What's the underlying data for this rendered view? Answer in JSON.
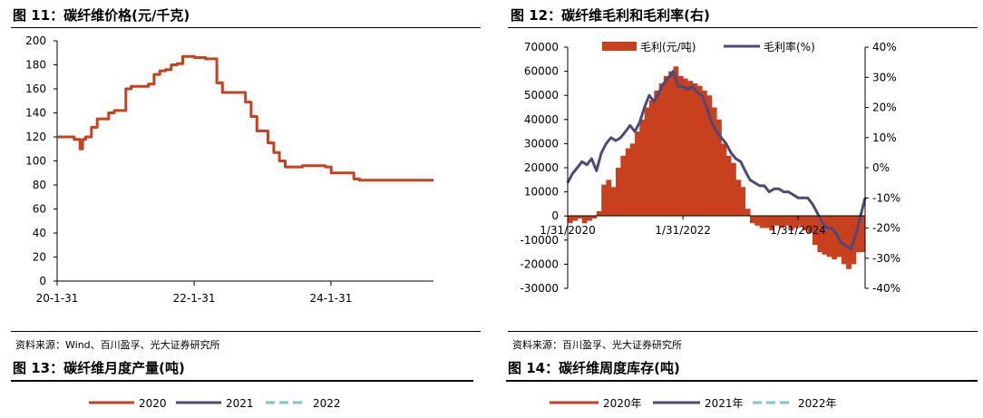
{
  "fig11": {
    "title": "图 11：碳纤维价格(元/千克)"
  },
  "fig12": {
    "title": "图 12：碳纤维毛利和毛利率(右)"
  },
  "fig13": {
    "title": "图 13：碳纤维月度产量(吨)"
  },
  "fig14": {
    "title": "图 14：碳纤维周度库存(吨)"
  },
  "source_left": "资料来源：Wind、百川盈孚、光大证券研究所",
  "source_right": "资料来源：百川盈孚、光大证券研究所",
  "colors": {
    "series_red": "#c8401e",
    "series_navy": "#4c4a78",
    "series_teal": "#7fc6c8",
    "series_blue": "#6aa3c8"
  },
  "chart_data": [
    {
      "id": "fig11",
      "type": "line",
      "title": "碳纤维价格(元/千克)",
      "ylim": [
        0,
        200
      ],
      "yticks": [
        0,
        20,
        40,
        60,
        80,
        100,
        120,
        140,
        160,
        180,
        200
      ],
      "xtick_labels": [
        "20-1-31",
        "22-1-31",
        "24-1-31"
      ],
      "xtick_dates": [
        "2020-01-31",
        "2022-01-31",
        "2024-01-31"
      ],
      "xlim": [
        "2020-01-31",
        "2025-07-31"
      ],
      "grid": false,
      "series": [
        {
          "color": "#c8401e",
          "x": [
            "2020-01-31",
            "2020-05-01",
            "2020-06-01",
            "2020-06-15",
            "2020-07-01",
            "2020-08-01",
            "2020-09-01",
            "2020-11-01",
            "2020-12-01",
            "2021-02-01",
            "2021-03-01",
            "2021-06-01",
            "2021-07-01",
            "2021-08-01",
            "2021-09-01",
            "2021-10-01",
            "2021-11-01",
            "2021-12-01",
            "2022-01-01",
            "2022-02-01",
            "2022-04-01",
            "2022-06-01",
            "2022-07-01",
            "2022-09-01",
            "2022-11-01",
            "2022-12-01",
            "2023-01-01",
            "2023-03-01",
            "2023-04-01",
            "2023-05-01",
            "2023-06-01",
            "2023-08-01",
            "2023-09-01",
            "2023-11-01",
            "2024-01-01",
            "2024-02-01",
            "2024-04-01",
            "2024-06-01",
            "2024-07-01",
            "2024-10-01",
            "2025-01-01",
            "2025-04-01",
            "2025-07-31"
          ],
          "y": [
            120,
            118,
            110,
            118,
            120,
            128,
            135,
            140,
            142,
            160,
            162,
            164,
            172,
            175,
            176,
            180,
            181,
            187,
            187,
            186,
            185,
            165,
            157,
            157,
            149,
            137,
            125,
            115,
            107,
            100,
            95,
            95,
            96,
            96,
            95,
            90,
            90,
            85,
            84,
            84,
            84,
            84,
            84
          ]
        }
      ]
    },
    {
      "id": "fig12",
      "type": "area",
      "title": "碳纤维毛利和毛利率(右)",
      "ylim": [
        -30000,
        70000
      ],
      "yticks": [
        -30000,
        -20000,
        -10000,
        0,
        10000,
        20000,
        30000,
        40000,
        50000,
        60000,
        70000
      ],
      "y2lim": [
        -40,
        40
      ],
      "y2ticks": [
        "-40%",
        "-30%",
        "-20%",
        "-10%",
        "0%",
        "10%",
        "20%",
        "30%",
        "40%"
      ],
      "y2tick_values": [
        -40,
        -30,
        -20,
        -10,
        0,
        10,
        20,
        30,
        40
      ],
      "xtick_labels": [
        "1/31/2020",
        "1/31/2022",
        "1/31/2024"
      ],
      "xtick_dates": [
        "2020-01-31",
        "2022-01-31",
        "2024-01-31"
      ],
      "xlim": [
        "2020-01-31",
        "2025-03-31"
      ],
      "legend_position": "top",
      "series": [
        {
          "name": "毛利(元/吨)",
          "color": "#c8401e",
          "axis": "left",
          "kind": "area",
          "x": [
            "2020-01-31",
            "2020-03-01",
            "2020-04-01",
            "2020-05-01",
            "2020-06-01",
            "2020-07-01",
            "2020-08-01",
            "2020-09-01",
            "2020-10-01",
            "2020-11-01",
            "2020-12-01",
            "2021-01-01",
            "2021-02-01",
            "2021-03-01",
            "2021-04-01",
            "2021-05-01",
            "2021-06-01",
            "2021-07-01",
            "2021-08-01",
            "2021-09-01",
            "2021-10-01",
            "2021-11-01",
            "2021-12-01",
            "2022-01-01",
            "2022-02-01",
            "2022-03-01",
            "2022-04-01",
            "2022-05-01",
            "2022-06-01",
            "2022-07-01",
            "2022-08-01",
            "2022-09-01",
            "2022-10-01",
            "2022-11-01",
            "2022-12-01",
            "2023-01-01",
            "2023-02-01",
            "2023-03-01",
            "2023-04-01",
            "2023-05-01",
            "2023-06-01",
            "2023-07-01",
            "2023-08-01",
            "2023-09-01",
            "2023-10-01",
            "2023-11-01",
            "2023-12-01",
            "2024-01-01",
            "2024-02-01",
            "2024-03-01",
            "2024-04-01",
            "2024-05-01",
            "2024-06-01",
            "2024-07-01",
            "2024-08-01",
            "2024-09-01",
            "2024-10-01",
            "2024-11-01",
            "2024-12-01",
            "2025-01-01",
            "2025-02-01",
            "2025-03-31"
          ],
          "y": [
            -3000,
            -2000,
            -1000,
            -3000,
            -2000,
            -1000,
            2000,
            13000,
            15000,
            12000,
            20000,
            25000,
            28000,
            30000,
            35000,
            40000,
            45000,
            48000,
            52000,
            55000,
            58000,
            60000,
            62000,
            58000,
            57000,
            56000,
            55000,
            54000,
            52000,
            50000,
            45000,
            40000,
            30000,
            25000,
            22000,
            15000,
            12000,
            3000,
            -3000,
            -4000,
            -5000,
            -5000,
            -6000,
            -4000,
            -5000,
            -4000,
            -6000,
            -5000,
            -4000,
            -6000,
            -7000,
            -12000,
            -15000,
            -16000,
            -17000,
            -18000,
            -17000,
            -20000,
            -22000,
            -20000,
            -15000,
            -8000
          ]
        },
        {
          "name": "毛利率(%)",
          "color": "#4c4a78",
          "axis": "right",
          "kind": "line",
          "x": [
            "2020-01-31",
            "2020-03-01",
            "2020-04-01",
            "2020-05-01",
            "2020-06-01",
            "2020-07-01",
            "2020-08-01",
            "2020-09-01",
            "2020-10-01",
            "2020-11-01",
            "2020-12-01",
            "2021-01-01",
            "2021-02-01",
            "2021-03-01",
            "2021-04-01",
            "2021-05-01",
            "2021-06-01",
            "2021-07-01",
            "2021-08-01",
            "2021-09-01",
            "2021-10-01",
            "2021-11-01",
            "2021-12-01",
            "2022-01-01",
            "2022-02-01",
            "2022-03-01",
            "2022-04-01",
            "2022-05-01",
            "2022-06-01",
            "2022-07-01",
            "2022-08-01",
            "2022-09-01",
            "2022-10-01",
            "2022-11-01",
            "2022-12-01",
            "2023-01-01",
            "2023-02-01",
            "2023-03-01",
            "2023-04-01",
            "2023-05-01",
            "2023-06-01",
            "2023-07-01",
            "2023-08-01",
            "2023-09-01",
            "2023-10-01",
            "2023-11-01",
            "2023-12-01",
            "2024-01-01",
            "2024-02-01",
            "2024-03-01",
            "2024-04-01",
            "2024-05-01",
            "2024-06-01",
            "2024-07-01",
            "2024-08-01",
            "2024-09-01",
            "2024-10-01",
            "2024-11-01",
            "2024-12-01",
            "2025-01-01",
            "2025-02-01",
            "2025-03-31"
          ],
          "y": [
            -5,
            -2,
            0,
            2,
            1,
            3,
            -1,
            5,
            8,
            10,
            9,
            10,
            12,
            14,
            12,
            15,
            20,
            24,
            22,
            25,
            28,
            30,
            32,
            27,
            27,
            26,
            27,
            25,
            24,
            20,
            15,
            12,
            10,
            8,
            5,
            3,
            2,
            -1,
            -4,
            -5,
            -6,
            -6,
            -8,
            -7,
            -7,
            -8,
            -8,
            -9,
            -10,
            -10,
            -10,
            -12,
            -15,
            -18,
            -20,
            -20,
            -22,
            -25,
            -26,
            -27,
            -22,
            -10
          ]
        }
      ]
    },
    {
      "id": "fig13",
      "type": "line",
      "title": "碳纤维月度产量(吨)",
      "legend_position": "top",
      "series": [
        {
          "name": "2020",
          "color": "#c8401e",
          "values": []
        },
        {
          "name": "2021",
          "color": "#4c4a78",
          "values": []
        },
        {
          "name": "2022",
          "color": "#7fc6c8",
          "values": []
        }
      ]
    },
    {
      "id": "fig14",
      "type": "line",
      "title": "碳纤维周度库存(吨)",
      "legend_position": "top",
      "series": [
        {
          "name": "2020年",
          "color": "#c8401e",
          "values": []
        },
        {
          "name": "2021年",
          "color": "#4c4a78",
          "values": []
        },
        {
          "name": "2022年",
          "color": "#7fc6c8",
          "values": []
        }
      ]
    }
  ]
}
